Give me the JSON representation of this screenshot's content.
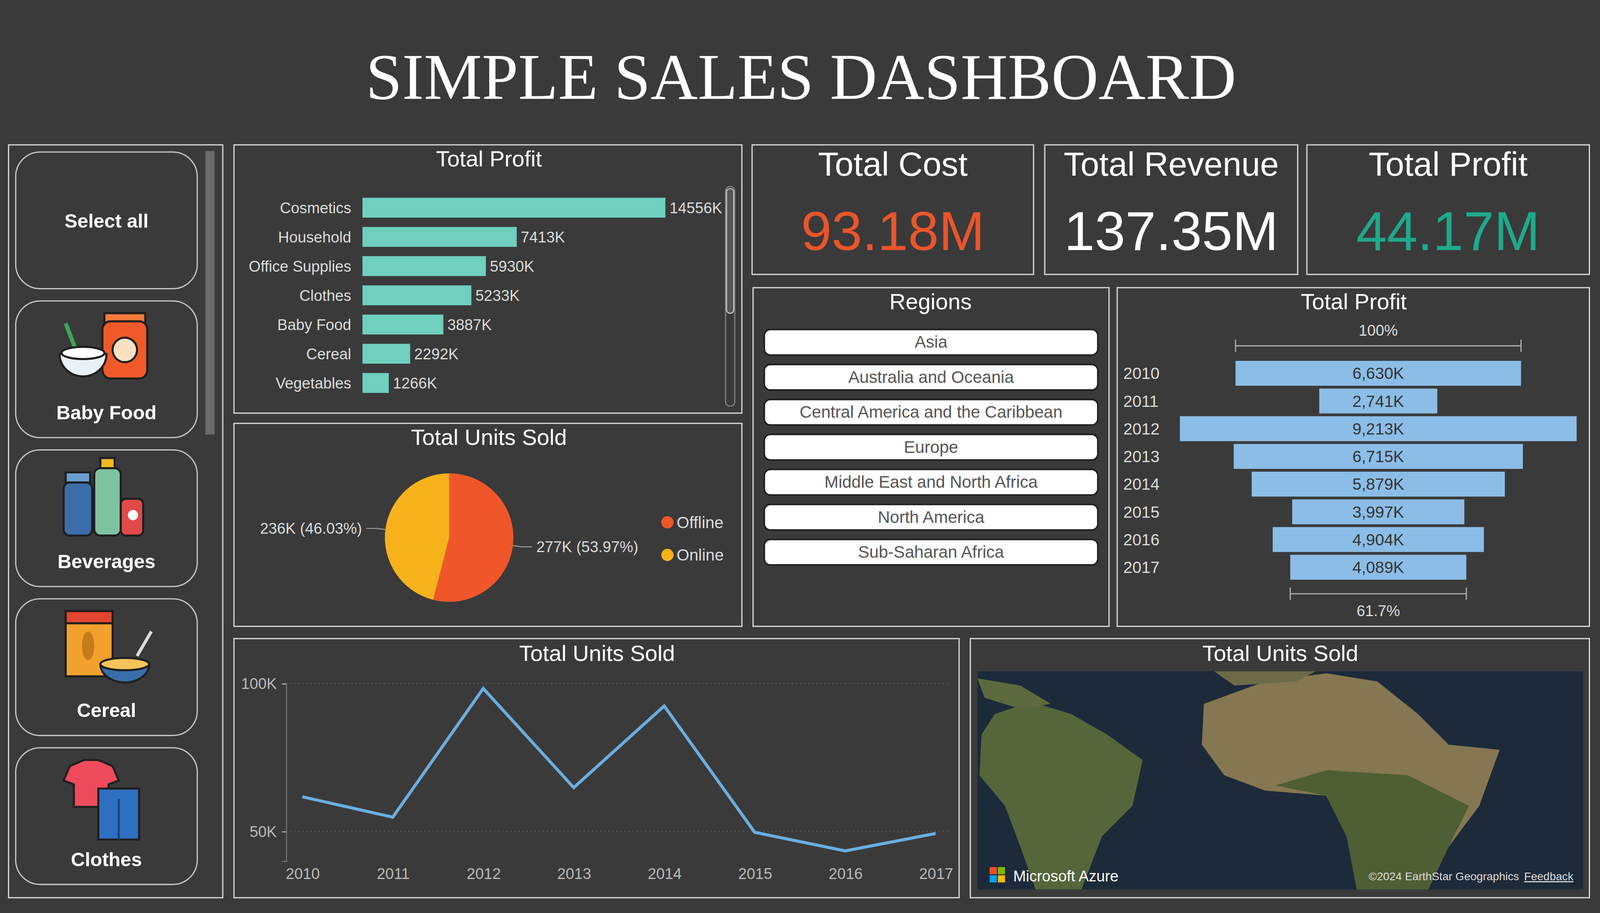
{
  "title": "SIMPLE SALES DASHBOARD",
  "slicer": {
    "items": [
      "Select all",
      "Baby Food",
      "Beverages",
      "Cereal",
      "Clothes"
    ]
  },
  "kpis": [
    {
      "title": "Total Cost",
      "value": "93.18M",
      "color": "#ea552b"
    },
    {
      "title": "Total Revenue",
      "value": "137.35M",
      "color": "#ffffff"
    },
    {
      "title": "Total Profit",
      "value": "44.17M",
      "color": "#1fa98b"
    }
  ],
  "regions": {
    "title": "Regions",
    "items": [
      "Asia",
      "Australia and Oceania",
      "Central America and the Caribbean",
      "Europe",
      "Middle East and North Africa",
      "North America",
      "Sub-Saharan Africa"
    ]
  },
  "map": {
    "title": "Total Units Sold",
    "brand": "Microsoft Azure",
    "credit": "©2024 EarthStar Geographics",
    "feedback": "Feedback"
  },
  "chart_data": [
    {
      "type": "bar",
      "title": "Total Profit",
      "orientation": "horizontal",
      "categories": [
        "Cosmetics",
        "Household",
        "Office Supplies",
        "Clothes",
        "Baby Food",
        "Cereal",
        "Vegetables"
      ],
      "values": [
        14556,
        7413,
        5930,
        5233,
        3887,
        2292,
        1266
      ],
      "value_labels": [
        "14556K",
        "7413K",
        "5930K",
        "5233K",
        "3887K",
        "2292K",
        "1266K"
      ],
      "color": "#6fd0bf",
      "data_labels": true,
      "tick_labels": "y"
    },
    {
      "type": "pie",
      "title": "Total Units Sold",
      "categories": [
        "Offline",
        "Online"
      ],
      "values": [
        277,
        236
      ],
      "value_labels": [
        "277K (53.97%)",
        "236K (46.03%)"
      ],
      "colors": [
        "#ef572a",
        "#f7b21b"
      ],
      "legend": "right",
      "data_labels": true
    },
    {
      "type": "funnel",
      "title": "Total Profit",
      "categories": [
        "2010",
        "2011",
        "2012",
        "2013",
        "2014",
        "2015",
        "2016",
        "2017"
      ],
      "values": [
        6630,
        2741,
        9213,
        6715,
        5879,
        3997,
        4904,
        4089
      ],
      "value_labels": [
        "6,630K",
        "2,741K",
        "9,213K",
        "6,715K",
        "5,879K",
        "3,997K",
        "4,904K",
        "4,089K"
      ],
      "color": "#8cbde6",
      "data_labels": true,
      "annotations": [
        {
          "value": 100,
          "label": "100%"
        },
        {
          "value": 61.7,
          "label": "61.7%"
        }
      ]
    },
    {
      "type": "line",
      "title": "Total Units Sold",
      "categories": [
        "2010",
        "2011",
        "2012",
        "2013",
        "2014",
        "2015",
        "2016",
        "2017"
      ],
      "values": [
        61.7,
        54.8,
        98.3,
        64.8,
        92.4,
        49.7,
        43.4,
        49.3
      ],
      "color": "#6aaee2",
      "ylim": [
        40,
        100
      ],
      "yticks": [
        {
          "value": 50,
          "label": "50K"
        },
        {
          "value": 100,
          "label": "100K"
        }
      ],
      "grid": true
    }
  ]
}
